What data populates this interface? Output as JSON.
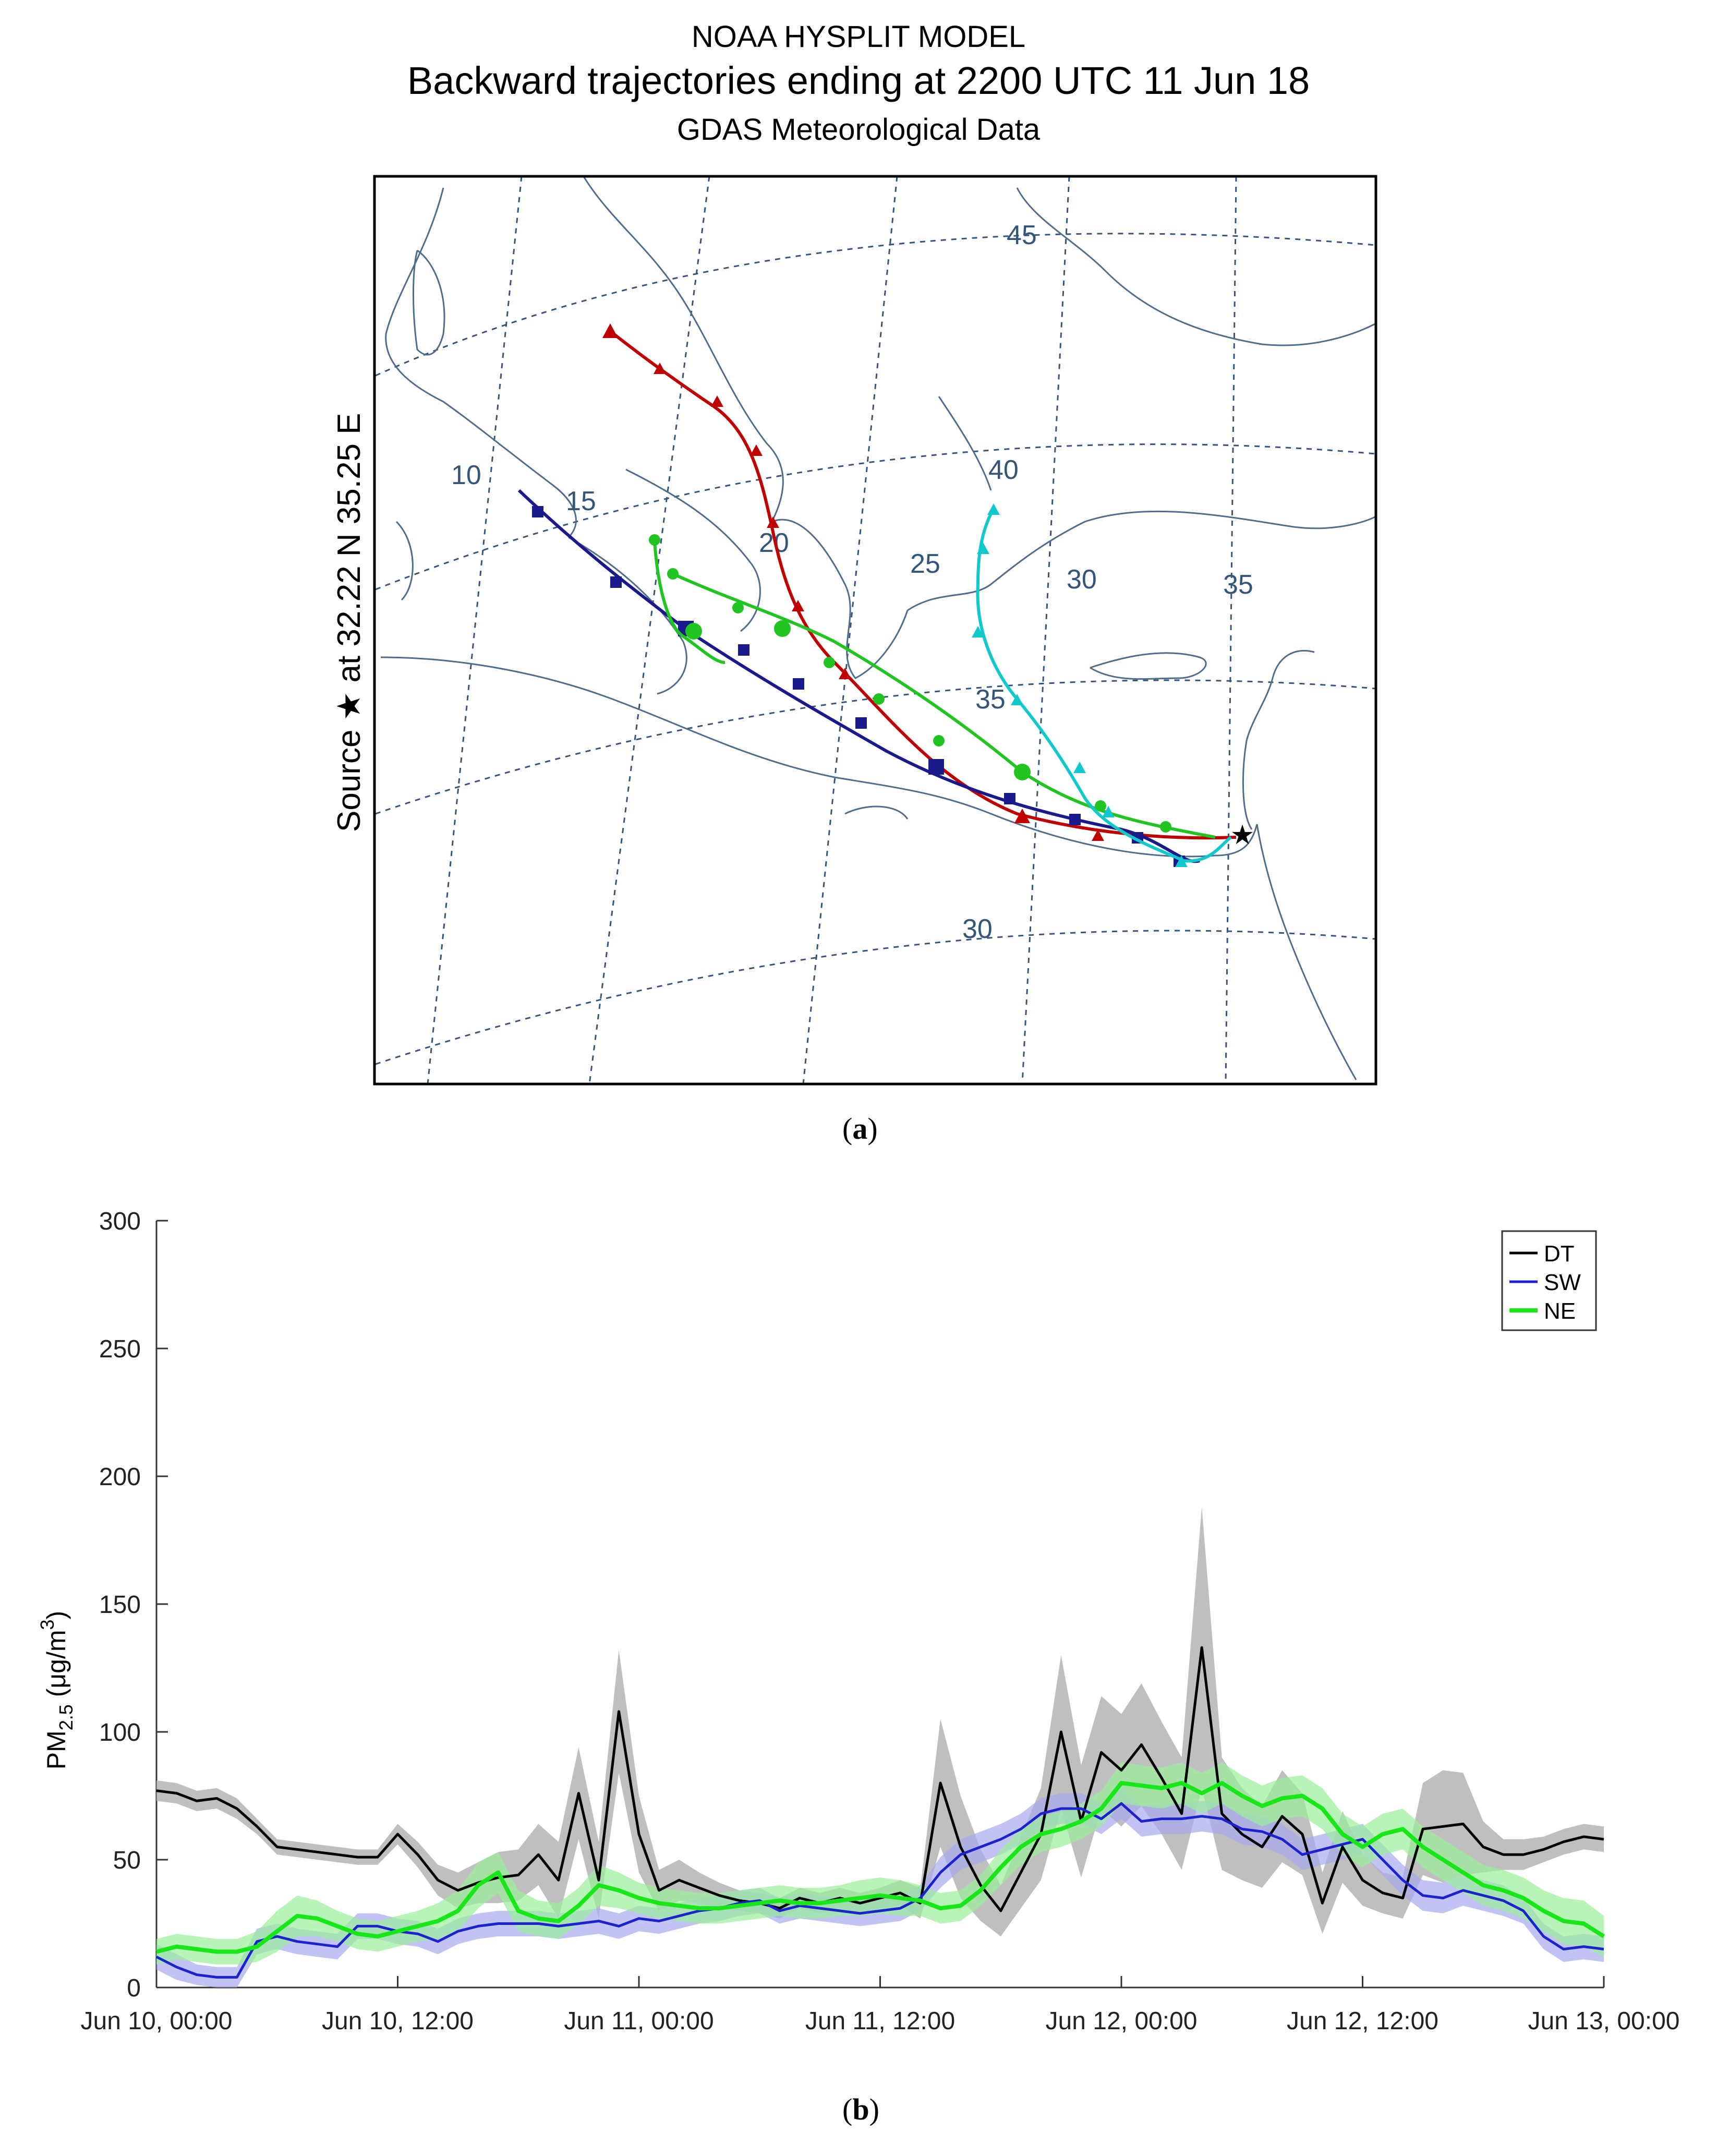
{
  "panel_a": {
    "title": "NOAA HYSPLIT MODEL",
    "subtitle": "Backward trajectories ending at 2200 UTC 11 Jun 18",
    "subtitle2": "GDAS Meteorological Data",
    "source_label": "Source ★ at  32.22 N  35.25 E",
    "panel_label": "a",
    "lon_labels": [
      "10",
      "15",
      "20",
      "25",
      "30",
      "35"
    ],
    "lat_labels": [
      "45",
      "40",
      "35",
      "30"
    ],
    "trajectories": [
      {
        "name": "red",
        "color": "#c00000"
      },
      {
        "name": "navy",
        "color": "#1a1a8c"
      },
      {
        "name": "green",
        "color": "#22c422"
      },
      {
        "name": "cyan",
        "color": "#11c8cc"
      }
    ]
  },
  "panel_b": {
    "panel_label": "b"
  },
  "chart_data": {
    "type": "line",
    "title": "",
    "xlabel": "",
    "ylabel": "PM2.5 (μg/m3)",
    "ylabel_parts": {
      "main": "PM",
      "sub": "2.5",
      "unit_open": " (μg/m",
      "sup": "3",
      "unit_close": ")"
    },
    "ylim": [
      0,
      300
    ],
    "yticks": [
      0,
      50,
      100,
      150,
      200,
      250,
      300
    ],
    "x_hours_range": [
      0,
      72
    ],
    "xticks": [
      {
        "h": 0,
        "label": "Jun 10, 00:00"
      },
      {
        "h": 12,
        "label": "Jun 10, 12:00"
      },
      {
        "h": 24,
        "label": "Jun 11, 00:00"
      },
      {
        "h": 36,
        "label": "Jun 11, 12:00"
      },
      {
        "h": 48,
        "label": "Jun 12, 00:00"
      },
      {
        "h": 60,
        "label": "Jun 12, 12:00"
      },
      {
        "h": 72,
        "label": "Jun 13, 00:00"
      }
    ],
    "x_step_hours": 1,
    "series": [
      {
        "name": "DT",
        "color": "#000000",
        "band": "#b8b8b8",
        "values": [
          77,
          76,
          73,
          74,
          70,
          63,
          55,
          54,
          53,
          52,
          51,
          51,
          60,
          52,
          42,
          38,
          41,
          43,
          44,
          52,
          42,
          76,
          42,
          108,
          60,
          38,
          42,
          39,
          36,
          34,
          33,
          31,
          35,
          33,
          35,
          33,
          35,
          37,
          33,
          80,
          55,
          40,
          30,
          45,
          60,
          100,
          65,
          92,
          85,
          95,
          82,
          68,
          133,
          68,
          60,
          55,
          67,
          60,
          33,
          55,
          42,
          37,
          35,
          62,
          63,
          64,
          55,
          52,
          52,
          54,
          57,
          59,
          58
        ],
        "spread": [
          4,
          4,
          4,
          4,
          4,
          3,
          3,
          3,
          3,
          3,
          3,
          3,
          4,
          5,
          6,
          7,
          8,
          10,
          10,
          12,
          15,
          18,
          15,
          24,
          15,
          8,
          8,
          6,
          5,
          4,
          4,
          4,
          4,
          4,
          4,
          4,
          4,
          5,
          6,
          25,
          20,
          14,
          10,
          14,
          18,
          30,
          22,
          22,
          22,
          24,
          22,
          22,
          55,
          22,
          18,
          16,
          18,
          16,
          12,
          14,
          10,
          8,
          8,
          18,
          22,
          20,
          10,
          6,
          6,
          5,
          5,
          5,
          5
        ]
      },
      {
        "name": "SW",
        "color": "#1c22cc",
        "band": "#a7aaee",
        "values": [
          12,
          8,
          5,
          4,
          4,
          18,
          20,
          18,
          17,
          16,
          24,
          24,
          22,
          21,
          18,
          22,
          24,
          25,
          25,
          25,
          24,
          25,
          26,
          24,
          27,
          26,
          28,
          30,
          31,
          33,
          34,
          30,
          32,
          31,
          30,
          29,
          30,
          31,
          35,
          45,
          52,
          55,
          58,
          62,
          68,
          70,
          70,
          66,
          72,
          65,
          66,
          66,
          67,
          66,
          62,
          61,
          58,
          52,
          54,
          56,
          58,
          50,
          42,
          36,
          35,
          38,
          36,
          34,
          30,
          20,
          15,
          16,
          15
        ],
        "spread": [
          5,
          5,
          4,
          4,
          4,
          5,
          5,
          5,
          5,
          5,
          5,
          5,
          5,
          5,
          5,
          5,
          5,
          5,
          5,
          5,
          5,
          5,
          5,
          5,
          5,
          5,
          5,
          5,
          5,
          5,
          5,
          5,
          5,
          5,
          5,
          5,
          5,
          5,
          5,
          6,
          6,
          6,
          6,
          6,
          6,
          6,
          6,
          6,
          6,
          6,
          6,
          6,
          6,
          6,
          6,
          6,
          6,
          6,
          6,
          6,
          6,
          6,
          6,
          6,
          6,
          6,
          6,
          6,
          5,
          5,
          5,
          5,
          5
        ]
      },
      {
        "name": "NE",
        "color": "#19e619",
        "band": "#9af09a",
        "values": [
          14,
          16,
          15,
          14,
          14,
          16,
          22,
          28,
          27,
          24,
          21,
          20,
          22,
          24,
          26,
          30,
          40,
          45,
          30,
          27,
          26,
          32,
          40,
          38,
          35,
          33,
          32,
          31,
          31,
          32,
          33,
          34,
          33,
          33,
          34,
          35,
          36,
          35,
          34,
          31,
          32,
          38,
          47,
          55,
          60,
          62,
          65,
          70,
          80,
          79,
          78,
          80,
          76,
          80,
          75,
          71,
          74,
          75,
          70,
          60,
          55,
          60,
          62,
          55,
          50,
          45,
          40,
          38,
          35,
          30,
          26,
          25,
          20
        ],
        "spread": [
          5,
          5,
          5,
          5,
          5,
          6,
          8,
          8,
          7,
          6,
          6,
          6,
          6,
          6,
          7,
          8,
          9,
          8,
          8,
          7,
          7,
          7,
          8,
          7,
          6,
          6,
          6,
          6,
          6,
          6,
          6,
          6,
          6,
          6,
          6,
          7,
          7,
          7,
          6,
          6,
          6,
          6,
          7,
          7,
          7,
          7,
          7,
          7,
          8,
          8,
          8,
          8,
          8,
          8,
          8,
          8,
          8,
          8,
          8,
          8,
          8,
          8,
          8,
          8,
          8,
          8,
          8,
          8,
          8,
          8,
          9,
          9,
          8
        ]
      }
    ],
    "legend": [
      "DT",
      "SW",
      "NE"
    ],
    "legend_position": "top-right"
  }
}
